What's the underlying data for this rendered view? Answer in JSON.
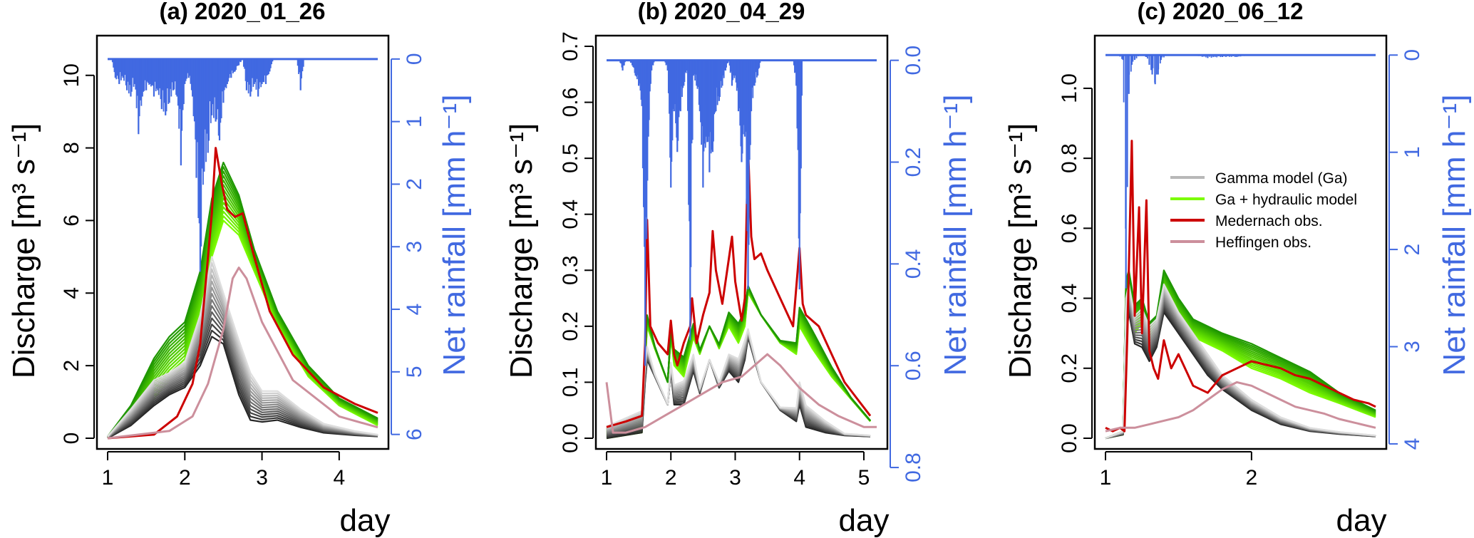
{
  "colors": {
    "rain": "#4169e1",
    "gamma_dark": "#262626",
    "gamma_light": "#dedede",
    "hydraulic_dark": "#1e9600",
    "hydraulic_light": "#7cfc00",
    "medernach": "#cc0000",
    "heffingen": "#cc8f9c"
  },
  "legend": {
    "gamma": "Gamma model (Ga)",
    "hydraulic": "Ga + hydraulic model",
    "medernach": "Medernach obs.",
    "heffingen": "Heffingen obs."
  },
  "chart_data": [
    {
      "type": "line",
      "title": "(a) 2020_01_26",
      "xlabel": "day",
      "ylabel": "Discharge [m³ s⁻¹]",
      "y2label": "Net rainfall [mm h⁻¹]",
      "xlim": [
        1,
        4.5
      ],
      "ylim": [
        0,
        10.8
      ],
      "xticks": [
        1,
        2,
        3,
        4
      ],
      "yticks": [
        0,
        2,
        4,
        6,
        8,
        10
      ],
      "y2_reversed": true,
      "y2lim": [
        0,
        6
      ],
      "y2ticks": [
        0,
        1,
        2,
        3,
        4,
        5,
        6
      ],
      "rain_baseline_discharge": 10.45,
      "rain_units_per_discharge_unit": 0.58,
      "series": [
        {
          "name": "Medernach obs.",
          "x": [
            1,
            1.6,
            1.9,
            2.1,
            2.2,
            2.28,
            2.35,
            2.4,
            2.48,
            2.55,
            2.65,
            2.75,
            2.9,
            3.1,
            3.4,
            3.8,
            4.2,
            4.5
          ],
          "y": [
            0,
            0.1,
            0.6,
            1.5,
            2.6,
            4.5,
            6.2,
            8.0,
            7.0,
            6.3,
            6.1,
            6.2,
            5.0,
            3.5,
            2.3,
            1.4,
            0.95,
            0.7
          ]
        },
        {
          "name": "Heffingen obs.",
          "x": [
            1,
            1.8,
            2.1,
            2.3,
            2.5,
            2.62,
            2.7,
            2.8,
            3.0,
            3.4,
            4.0,
            4.5
          ],
          "y": [
            0,
            0.2,
            0.6,
            1.5,
            3.0,
            4.4,
            4.7,
            4.4,
            3.2,
            1.6,
            0.6,
            0.3
          ]
        }
      ],
      "hydraulic_ensemble": {
        "x": [
          1,
          1.3,
          1.6,
          1.8,
          2.0,
          2.2,
          2.35,
          2.5,
          2.7,
          2.9,
          3.2,
          3.6,
          4.0,
          4.5
        ],
        "low": [
          0,
          0.4,
          1.1,
          1.6,
          2.0,
          3.3,
          5.0,
          6.0,
          5.6,
          4.6,
          3.1,
          1.7,
          0.9,
          0.35
        ],
        "high": [
          0.05,
          0.9,
          2.2,
          2.8,
          3.2,
          4.6,
          6.6,
          7.6,
          6.7,
          5.2,
          3.5,
          2.0,
          1.1,
          0.55
        ]
      },
      "gamma_ensemble": {
        "x": [
          1,
          1.3,
          1.6,
          1.8,
          2.0,
          2.2,
          2.35,
          2.5,
          2.7,
          2.85,
          3.0,
          3.2,
          3.5,
          3.8,
          4.2,
          4.5
        ],
        "low": [
          0,
          0.35,
          0.9,
          1.2,
          1.4,
          2.0,
          2.8,
          2.6,
          1.2,
          0.5,
          0.45,
          0.5,
          0.3,
          0.15,
          0.08,
          0.05
        ],
        "high": [
          0.05,
          0.8,
          1.6,
          1.8,
          2.1,
          3.4,
          5.0,
          4.0,
          2.7,
          1.8,
          1.3,
          1.3,
          0.8,
          0.4,
          0.2,
          0.1
        ]
      },
      "rain_x": [
        1.0,
        1.05,
        1.1,
        1.15,
        1.2,
        1.25,
        1.3,
        1.35,
        1.4,
        1.45,
        1.5,
        1.55,
        1.6,
        1.65,
        1.7,
        1.75,
        1.8,
        1.85,
        1.9,
        1.95,
        2.0,
        2.05,
        2.1,
        2.15,
        2.2,
        2.25,
        2.3,
        2.35,
        2.4,
        2.45,
        2.5,
        2.55,
        2.6,
        2.65,
        2.7,
        2.75,
        2.8,
        2.85,
        2.9,
        2.95,
        3.0,
        3.05,
        3.1,
        3.15,
        3.2,
        3.25,
        3.3,
        3.35,
        3.4,
        3.45,
        3.5,
        3.55,
        3.6,
        3.65,
        3.7,
        3.75,
        3.8,
        3.85,
        3.9,
        3.95,
        4.0,
        4.05,
        4.1,
        4.15,
        4.2,
        4.25,
        4.3,
        4.35,
        4.4,
        4.45,
        4.5
      ],
      "rain_y": [
        0,
        0,
        0.3,
        0.4,
        0.3,
        0.5,
        0.6,
        0.4,
        1.2,
        0.6,
        0.5,
        0.4,
        0.6,
        0.5,
        0.8,
        0.9,
        0.7,
        0.5,
        0.6,
        1.7,
        0.4,
        0.3,
        0.6,
        1.9,
        3.4,
        1.8,
        1.5,
        0.9,
        1.0,
        1.3,
        0.7,
        0.4,
        0.3,
        0.2,
        0.1,
        0,
        0.5,
        0.6,
        0.4,
        0.6,
        0.4,
        0.4,
        0.2,
        0,
        0,
        0,
        0,
        0,
        0,
        0,
        0.5,
        0,
        0,
        0,
        0,
        0,
        0,
        0,
        0,
        0,
        0,
        0,
        0,
        0,
        0,
        0,
        0,
        0,
        0,
        0,
        0
      ]
    },
    {
      "type": "line",
      "title": "(b) 2020_04_29",
      "xlabel": "day",
      "ylabel": "Discharge [m³ s⁻¹]",
      "y2label": "Net rainfall [mm h⁻¹]",
      "xlim": [
        1,
        5.2
      ],
      "ylim": [
        0,
        0.7
      ],
      "xticks": [
        1,
        2,
        3,
        4,
        5
      ],
      "yticks": [
        0.0,
        0.1,
        0.2,
        0.3,
        0.4,
        0.5,
        0.6,
        0.7
      ],
      "y2_reversed": true,
      "y2lim": [
        0,
        0.8
      ],
      "y2ticks": [
        0.0,
        0.2,
        0.4,
        0.6,
        0.8
      ],
      "rain_baseline_discharge": 0.675,
      "rain_units_per_discharge_unit": 1.1,
      "series": [
        {
          "name": "Medernach obs.",
          "x": [
            1,
            1.3,
            1.55,
            1.6,
            1.63,
            1.68,
            1.8,
            1.95,
            2.0,
            2.05,
            2.1,
            2.2,
            2.3,
            2.33,
            2.4,
            2.5,
            2.6,
            2.65,
            2.7,
            2.8,
            2.9,
            2.95,
            3.0,
            3.1,
            3.15,
            3.2,
            3.25,
            3.3,
            3.4,
            3.5,
            3.7,
            3.9,
            4.0,
            4.05,
            4.1,
            4.3,
            4.5,
            4.7,
            4.9,
            5.1
          ],
          "y": [
            0.02,
            0.03,
            0.04,
            0.17,
            0.39,
            0.2,
            0.17,
            0.15,
            0.21,
            0.15,
            0.13,
            0.17,
            0.2,
            0.25,
            0.17,
            0.22,
            0.26,
            0.37,
            0.3,
            0.24,
            0.32,
            0.36,
            0.28,
            0.21,
            0.25,
            0.52,
            0.36,
            0.32,
            0.33,
            0.3,
            0.25,
            0.2,
            0.34,
            0.24,
            0.22,
            0.2,
            0.15,
            0.1,
            0.07,
            0.04
          ]
        },
        {
          "name": "Heffingen obs.",
          "x": [
            1,
            1.1,
            1.3,
            1.6,
            1.9,
            2.2,
            2.5,
            2.8,
            3.1,
            3.3,
            3.5,
            3.7,
            4.0,
            4.3,
            4.6,
            5.0,
            5.2
          ],
          "y": [
            0.1,
            0.01,
            0.01,
            0.02,
            0.04,
            0.06,
            0.08,
            0.1,
            0.11,
            0.13,
            0.15,
            0.13,
            0.09,
            0.06,
            0.04,
            0.02,
            0.02
          ]
        }
      ],
      "hydraulic_ensemble": {
        "x": [
          1,
          1.55,
          1.6,
          1.63,
          1.75,
          1.95,
          2.0,
          2.05,
          2.2,
          2.35,
          2.45,
          2.6,
          2.75,
          2.9,
          3.05,
          3.15,
          3.2,
          3.4,
          3.7,
          3.95,
          4.0,
          4.2,
          4.5,
          4.8,
          5.1
        ],
        "low": [
          0,
          0.01,
          0.13,
          0.2,
          0.16,
          0.1,
          0.18,
          0.13,
          0.11,
          0.18,
          0.15,
          0.2,
          0.16,
          0.2,
          0.17,
          0.2,
          0.26,
          0.22,
          0.17,
          0.15,
          0.2,
          0.16,
          0.11,
          0.07,
          0.03
        ]
      },
      "gamma_ensemble": {
        "x": [
          1,
          1.55,
          1.6,
          1.63,
          1.75,
          1.95,
          2.0,
          2.05,
          2.2,
          2.35,
          2.45,
          2.6,
          2.75,
          2.9,
          3.05,
          3.15,
          3.2,
          3.4,
          3.7,
          3.95,
          4.0,
          4.1,
          4.4,
          4.7,
          5.1
        ],
        "low": [
          0,
          0.01,
          0.1,
          0.14,
          0.11,
          0.06,
          0.12,
          0.06,
          0.06,
          0.12,
          0.08,
          0.14,
          0.09,
          0.12,
          0.1,
          0.14,
          0.18,
          0.1,
          0.05,
          0.03,
          0.06,
          0.02,
          0.01,
          0.005,
          0.003
        ]
      },
      "rain_x": [
        1.0,
        1.05,
        1.1,
        1.15,
        1.2,
        1.25,
        1.3,
        1.35,
        1.4,
        1.45,
        1.5,
        1.55,
        1.6,
        1.65,
        1.7,
        1.75,
        1.8,
        1.85,
        1.9,
        1.95,
        2.0,
        2.05,
        2.1,
        2.15,
        2.2,
        2.25,
        2.3,
        2.35,
        2.4,
        2.45,
        2.5,
        2.55,
        2.6,
        2.65,
        2.7,
        2.75,
        2.8,
        2.85,
        2.9,
        2.95,
        3.0,
        3.05,
        3.1,
        3.15,
        3.2,
        3.25,
        3.3,
        3.35,
        3.4,
        3.45,
        3.5,
        3.55,
        3.6,
        3.65,
        3.7,
        3.75,
        3.8,
        3.85,
        3.9,
        3.95,
        4.0,
        4.05,
        4.1,
        4.15,
        4.2,
        4.25,
        4.3,
        4.35,
        4.4,
        4.45,
        4.5,
        4.55,
        4.6,
        4.65,
        4.7,
        4.75,
        4.8,
        4.85,
        4.9,
        4.95,
        5.0,
        5.05,
        5.1,
        5.15
      ],
      "rain_y": [
        0,
        0,
        0,
        0,
        0,
        0.02,
        0,
        0,
        0.01,
        0.03,
        0.05,
        0.09,
        0.6,
        0.15,
        0.02,
        0,
        0,
        0,
        0,
        0.02,
        0.25,
        0.1,
        0.18,
        0.1,
        0.05,
        0.02,
        0.55,
        0.03,
        0.05,
        0.1,
        0.25,
        0.15,
        0.22,
        0.18,
        0.1,
        0.08,
        0.05,
        0.02,
        0,
        0.05,
        0.03,
        0.1,
        0.2,
        0.15,
        0.45,
        0.1,
        0.05,
        0.03,
        0,
        0,
        0,
        0,
        0,
        0,
        0,
        0,
        0,
        0,
        0,
        0.05,
        0.45,
        0,
        0,
        0,
        0,
        0,
        0,
        0,
        0,
        0,
        0,
        0,
        0,
        0,
        0,
        0,
        0,
        0,
        0,
        0,
        0,
        0,
        0,
        0
      ]
    },
    {
      "type": "line",
      "title": "(c) 2020_06_12",
      "xlabel": "day",
      "ylabel": "Discharge [m³ s⁻¹]",
      "y2label": "Net rainfall [mm h⁻¹]",
      "xlim": [
        1,
        2.85
      ],
      "ylim": [
        0,
        1.12
      ],
      "xticks": [
        1,
        2
      ],
      "yticks": [
        0.0,
        0.2,
        0.4,
        0.6,
        0.8,
        1.0
      ],
      "y2_reversed": true,
      "y2lim": [
        0,
        4
      ],
      "y2ticks": [
        0,
        1,
        2,
        3,
        4
      ],
      "rain_baseline_discharge": 1.095,
      "rain_units_per_discharge_unit": 3.6,
      "series": [
        {
          "name": "Medernach obs.",
          "x": [
            1,
            1.05,
            1.1,
            1.13,
            1.15,
            1.18,
            1.2,
            1.23,
            1.25,
            1.28,
            1.3,
            1.33,
            1.36,
            1.4,
            1.45,
            1.5,
            1.6,
            1.7,
            1.8,
            1.9,
            2.0,
            2.1,
            2.2,
            2.3,
            2.4,
            2.5,
            2.6,
            2.7,
            2.8,
            2.85
          ],
          "y": [
            0.03,
            0.02,
            0.03,
            0.02,
            0.3,
            0.85,
            0.35,
            0.66,
            0.3,
            0.68,
            0.25,
            0.2,
            0.17,
            0.28,
            0.2,
            0.24,
            0.15,
            0.13,
            0.18,
            0.2,
            0.22,
            0.21,
            0.2,
            0.18,
            0.17,
            0.15,
            0.13,
            0.11,
            0.1,
            0.09
          ]
        },
        {
          "name": "Heffingen obs.",
          "x": [
            1,
            1.1,
            1.2,
            1.3,
            1.4,
            1.5,
            1.6,
            1.7,
            1.8,
            1.9,
            2.0,
            2.1,
            2.2,
            2.3,
            2.4,
            2.5,
            2.6,
            2.7,
            2.85
          ],
          "y": [
            0.02,
            0.03,
            0.03,
            0.04,
            0.05,
            0.06,
            0.08,
            0.11,
            0.14,
            0.16,
            0.15,
            0.13,
            0.11,
            0.09,
            0.08,
            0.07,
            0.055,
            0.045,
            0.03
          ]
        }
      ],
      "hydraulic_ensemble": {
        "x": [
          1,
          1.12,
          1.14,
          1.16,
          1.2,
          1.25,
          1.3,
          1.35,
          1.4,
          1.5,
          1.6,
          1.8,
          2.0,
          2.2,
          2.4,
          2.6,
          2.85
        ],
        "low": [
          0,
          0.01,
          0.3,
          0.4,
          0.3,
          0.33,
          0.28,
          0.3,
          0.42,
          0.34,
          0.29,
          0.25,
          0.2,
          0.17,
          0.13,
          0.1,
          0.06
        ],
        "high": [
          0,
          0.02,
          0.45,
          0.48,
          0.38,
          0.4,
          0.33,
          0.35,
          0.48,
          0.4,
          0.34,
          0.3,
          0.27,
          0.23,
          0.19,
          0.13,
          0.08
        ]
      },
      "gamma_ensemble": {
        "x": [
          1,
          1.12,
          1.14,
          1.16,
          1.2,
          1.25,
          1.3,
          1.35,
          1.4,
          1.5,
          1.6,
          1.7,
          1.8,
          2.0,
          2.2,
          2.4,
          2.6,
          2.85
        ],
        "low": [
          0,
          0.01,
          0.28,
          0.36,
          0.27,
          0.26,
          0.22,
          0.26,
          0.36,
          0.3,
          0.24,
          0.18,
          0.14,
          0.08,
          0.04,
          0.02,
          0.012,
          0.005
        ],
        "high": [
          0,
          0.02,
          0.4,
          0.44,
          0.35,
          0.37,
          0.32,
          0.34,
          0.44,
          0.36,
          0.3,
          0.24,
          0.18,
          0.11,
          0.06,
          0.03,
          0.018,
          0.008
        ]
      },
      "rain_x": [
        1.0,
        1.04,
        1.08,
        1.12,
        1.14,
        1.16,
        1.18,
        1.2,
        1.24,
        1.28,
        1.3,
        1.32,
        1.34,
        1.36,
        1.38,
        1.42,
        1.5,
        1.6,
        1.7,
        1.8,
        1.9,
        2.0,
        2.1,
        2.2,
        2.4,
        2.6,
        2.85
      ],
      "rain_y": [
        0,
        0,
        0,
        0.05,
        2.4,
        0.4,
        0.1,
        0.05,
        0,
        0.02,
        0.1,
        0.2,
        0.3,
        0.2,
        0.05,
        0,
        0,
        0,
        0.03,
        0.02,
        0.02,
        0,
        0,
        0,
        0,
        0,
        0
      ]
    }
  ]
}
